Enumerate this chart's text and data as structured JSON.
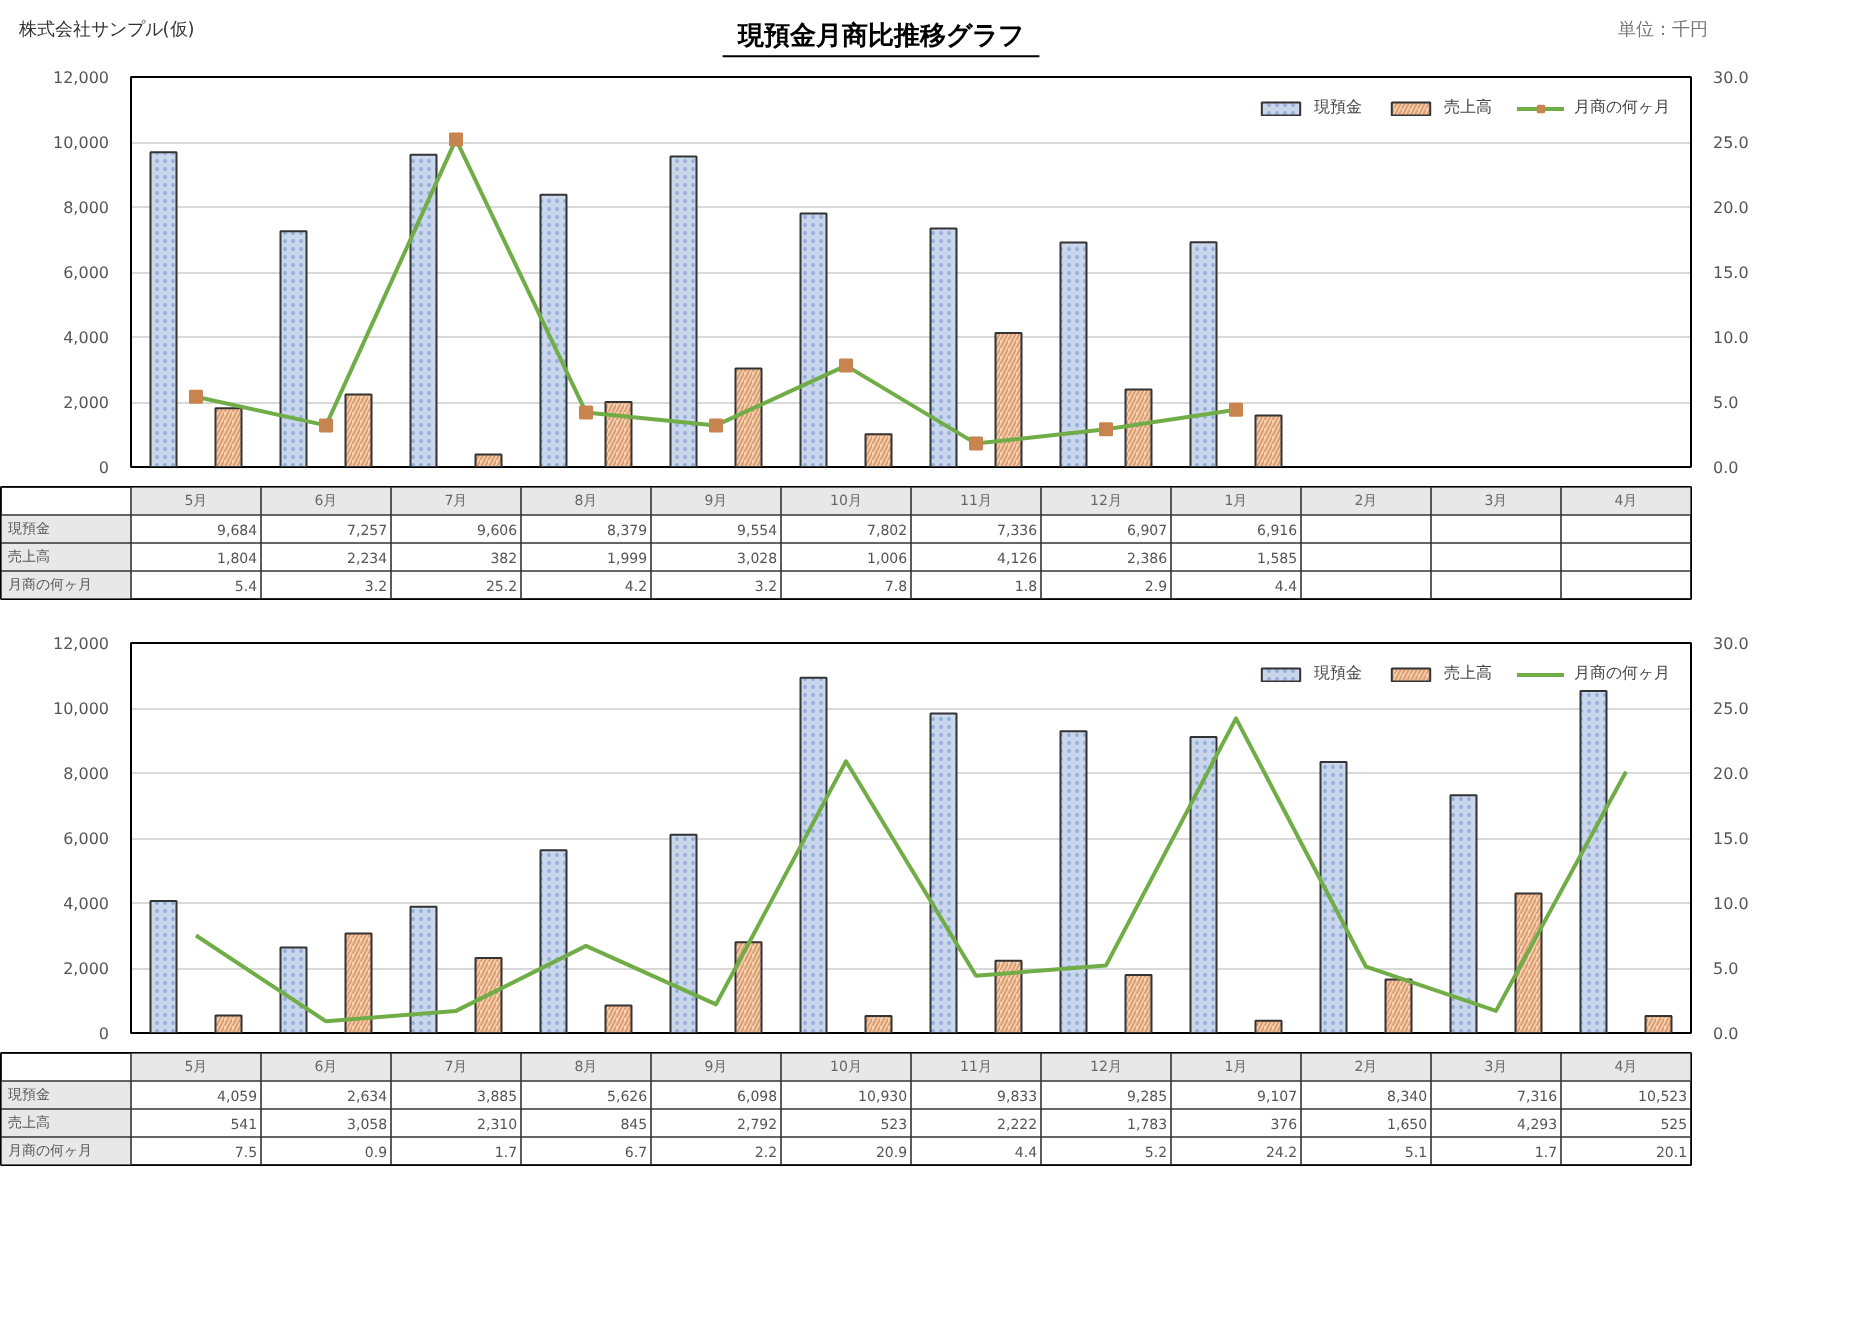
{
  "chart_data": [
    {
      "type": "bar",
      "title": "現預金月商比推移グラフ",
      "annotations": [
        "株式会社サンプル(仮)",
        "単位：千円"
      ],
      "categories": [
        "5月",
        "6月",
        "7月",
        "8月",
        "9月",
        "10月",
        "11月",
        "12月",
        "1月",
        "2月",
        "3月",
        "4月"
      ],
      "series": [
        {
          "name": "現預金",
          "color": "#c9d6ec",
          "values": [
            9684,
            7257,
            9606,
            8379,
            9554,
            7802,
            7336,
            6907,
            6916,
            null,
            null,
            null
          ],
          "value_labels": [
            "9,684",
            "7,257",
            "9,606",
            "8,379",
            "9,554",
            "7,802",
            "7,336",
            "6,907",
            "6,916",
            null,
            null,
            null
          ]
        },
        {
          "name": "売上高",
          "color": "#f6cfae",
          "values": [
            1804,
            2234,
            382,
            1999,
            3028,
            1006,
            4126,
            2386,
            1585,
            null,
            null,
            null
          ],
          "value_labels": [
            "1,804",
            "2,234",
            "382",
            "1,999",
            "3,028",
            "1,006",
            "4,126",
            "2,386",
            "1,585",
            null,
            null,
            null
          ]
        },
        {
          "name": "月商の何ヶ月",
          "type": "line",
          "axis": "y2",
          "color": "#70ad47",
          "marker": "square",
          "values": [
            5.4,
            3.2,
            25.2,
            4.2,
            3.2,
            7.8,
            1.8,
            2.9,
            4.4,
            null,
            null,
            null
          ]
        }
      ],
      "ylim": [
        0,
        12000
      ],
      "yticks": [
        0,
        {
          "value": 2000,
          "label": "2,000"
        },
        {
          "value": 4000,
          "label": "4,000"
        },
        {
          "value": 6000,
          "label": "6,000"
        },
        {
          "value": 8000,
          "label": "8,000"
        },
        {
          "value": 10000,
          "label": "10,000"
        },
        {
          "value": 12000,
          "label": "12,000"
        }
      ],
      "y2lim": [
        0,
        30
      ],
      "y2ticks": [
        {
          "value": 0,
          "label": "0.0"
        },
        {
          "value": 5,
          "label": "5.0"
        },
        {
          "value": 10,
          "label": "10.0"
        },
        {
          "value": 15,
          "label": "15.0"
        },
        {
          "value": 20,
          "label": "20.0"
        },
        {
          "value": 25,
          "label": "25.0"
        },
        {
          "value": 30,
          "label": "30.0"
        }
      ],
      "grid": "y",
      "legend": "top right",
      "data_labels": true
    },
    {
      "type": "bar",
      "categories": [
        "5月",
        "6月",
        "7月",
        "8月",
        "9月",
        "10月",
        "11月",
        "12月",
        "1月",
        "2月",
        "3月",
        "4月"
      ],
      "series": [
        {
          "name": "現預金",
          "color": "#c9d6ec",
          "values": [
            4059,
            2634,
            3885,
            5626,
            6098,
            10930,
            9833,
            9285,
            9107,
            8340,
            7316,
            10523
          ],
          "value_labels": [
            "4,059",
            "2,634",
            "3,885",
            "5,626",
            "6,098",
            "10,930",
            "9,833",
            "9,285",
            "9,107",
            "8,340",
            "7,316",
            "10,523"
          ]
        },
        {
          "name": "売上高",
          "color": "#f6cfae",
          "values": [
            541,
            3058,
            2310,
            845,
            2792,
            523,
            2222,
            1783,
            376,
            1650,
            4293,
            525
          ],
          "value_labels": [
            "541",
            "3,058",
            "2,310",
            "845",
            "2,792",
            "523",
            "2,222",
            "1,783",
            "376",
            "1,650",
            "4,293",
            "525"
          ]
        },
        {
          "name": "月商の何ヶ月",
          "type": "line",
          "axis": "y2",
          "color": "#70ad47",
          "values": [
            7.5,
            0.9,
            1.7,
            6.7,
            2.2,
            20.9,
            4.4,
            5.2,
            24.2,
            5.1,
            1.7,
            20.1
          ]
        }
      ],
      "ylim": [
        0,
        12000
      ],
      "yticks": [
        0,
        {
          "value": 2000,
          "label": "2,000"
        },
        {
          "value": 4000,
          "label": "4,000"
        },
        {
          "value": 6000,
          "label": "6,000"
        },
        {
          "value": 8000,
          "label": "8,000"
        },
        {
          "value": 10000,
          "label": "10,000"
        },
        {
          "value": 12000,
          "label": "12,000"
        }
      ],
      "y2lim": [
        0,
        30
      ],
      "y2ticks": [
        {
          "value": 0,
          "label": "0.0"
        },
        {
          "value": 5,
          "label": "5.0"
        },
        {
          "value": 10,
          "label": "10.0"
        },
        {
          "value": 15,
          "label": "15.0"
        },
        {
          "value": 20,
          "label": "20.0"
        },
        {
          "value": 25,
          "label": "25.0"
        },
        {
          "value": 30,
          "label": "30.0"
        }
      ],
      "grid": "y",
      "legend": "top right",
      "data_labels": true
    }
  ]
}
